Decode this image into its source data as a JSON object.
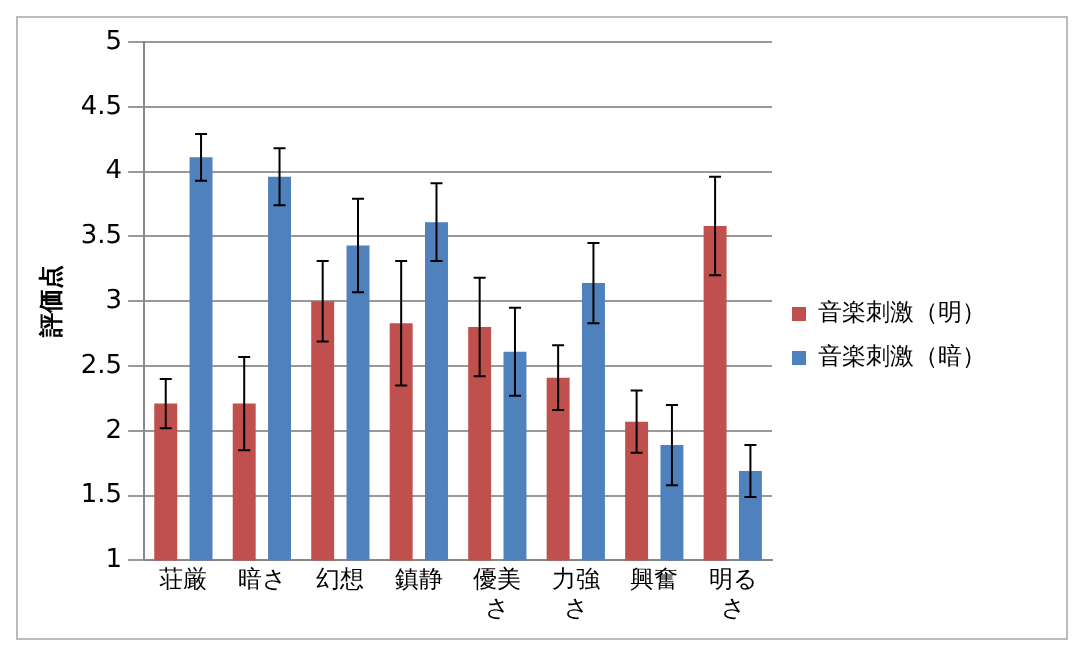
{
  "chart_data": {
    "type": "bar",
    "ylabel": "評価点",
    "categories": [
      "荘厳",
      "暗さ",
      "幻想",
      "鎮静",
      "優美さ",
      "力強さ",
      "興奮",
      "明るさ"
    ],
    "series": [
      {
        "name": "音楽刺激（明）",
        "color": "#c0504d",
        "values": [
          2.21,
          2.21,
          3.0,
          2.83,
          2.8,
          2.41,
          2.07,
          3.58
        ],
        "errors": [
          0.19,
          0.36,
          0.31,
          0.48,
          0.38,
          0.25,
          0.24,
          0.38
        ]
      },
      {
        "name": "音楽刺激（暗）",
        "color": "#4f81bd",
        "values": [
          4.11,
          3.96,
          3.43,
          3.61,
          2.61,
          3.14,
          1.89,
          1.69
        ],
        "errors": [
          0.18,
          0.22,
          0.36,
          0.3,
          0.34,
          0.31,
          0.31,
          0.2
        ]
      }
    ],
    "ylim": [
      1,
      5
    ],
    "yticks": [
      1,
      1.5,
      2,
      2.5,
      3,
      3.5,
      4,
      4.5,
      5
    ],
    "grid": "y",
    "legend": "right"
  }
}
